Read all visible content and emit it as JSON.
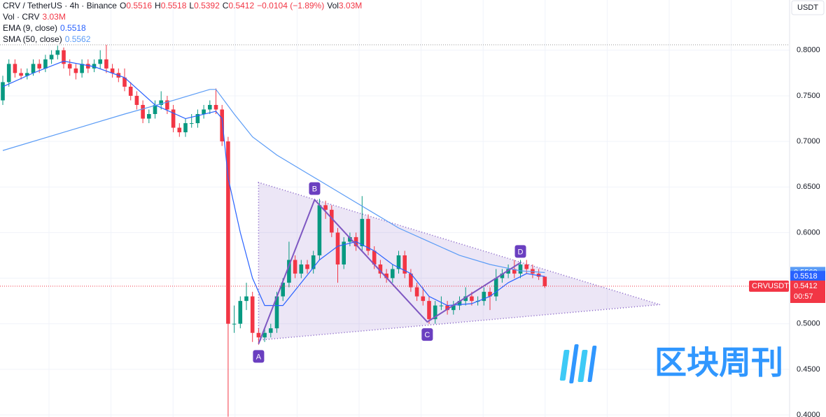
{
  "chart_data": {
    "type": "candlestick",
    "header": {
      "symbol": "CRV / TetherUS · 4h · Binance",
      "ohlc_labels": [
        "O",
        "H",
        "L",
        "C"
      ],
      "open": 0.5516,
      "high": 0.5518,
      "low": 0.5392,
      "close": 0.5412,
      "change": "−0.0104 (−1.89%)",
      "vol_label": "Vol",
      "vol_title": "Vol · CRV",
      "volume": "3.03M"
    },
    "currency": "USDT",
    "ticker": "CRVUSDT",
    "countdown": "00:57",
    "up_color": "#089981",
    "down_color": "#f23645",
    "ylim": [
      0.3977,
      0.8551
    ],
    "yticks": [
      {
        "value": 0.8,
        "label": "0.8000"
      },
      {
        "value": 0.75,
        "label": "0.7500"
      },
      {
        "value": 0.7,
        "label": "0.7000"
      },
      {
        "value": 0.65,
        "label": "0.6500"
      },
      {
        "value": 0.6,
        "label": "0.6000"
      },
      {
        "value": 0.55,
        "label": "0.5500"
      },
      {
        "value": 0.5,
        "label": "0.5000"
      },
      {
        "value": 0.45,
        "label": "0.4500"
      },
      {
        "value": 0.4,
        "label": "0.4000"
      }
    ],
    "high_line": 0.806,
    "candles": [
      [
        0.745,
        0.772,
        0.74,
        0.765
      ],
      [
        0.765,
        0.79,
        0.76,
        0.785
      ],
      [
        0.785,
        0.79,
        0.77,
        0.775
      ],
      [
        0.775,
        0.78,
        0.768,
        0.772
      ],
      [
        0.772,
        0.78,
        0.768,
        0.775
      ],
      [
        0.775,
        0.79,
        0.772,
        0.785
      ],
      [
        0.785,
        0.79,
        0.775,
        0.78
      ],
      [
        0.78,
        0.795,
        0.776,
        0.79
      ],
      [
        0.79,
        0.8,
        0.785,
        0.795
      ],
      [
        0.795,
        0.805,
        0.79,
        0.8
      ],
      [
        0.8,
        0.803,
        0.78,
        0.785
      ],
      [
        0.785,
        0.79,
        0.772,
        0.78
      ],
      [
        0.78,
        0.785,
        0.768,
        0.775
      ],
      [
        0.775,
        0.79,
        0.77,
        0.785
      ],
      [
        0.785,
        0.79,
        0.775,
        0.78
      ],
      [
        0.78,
        0.79,
        0.776,
        0.785
      ],
      [
        0.785,
        0.8,
        0.78,
        0.79
      ],
      [
        0.79,
        0.806,
        0.775,
        0.78
      ],
      [
        0.78,
        0.785,
        0.77,
        0.775
      ],
      [
        0.775,
        0.78,
        0.765,
        0.77
      ],
      [
        0.77,
        0.78,
        0.755,
        0.76
      ],
      [
        0.76,
        0.765,
        0.745,
        0.75
      ],
      [
        0.75,
        0.755,
        0.735,
        0.74
      ],
      [
        0.74,
        0.745,
        0.72,
        0.725
      ],
      [
        0.725,
        0.735,
        0.72,
        0.73
      ],
      [
        0.73,
        0.745,
        0.725,
        0.74
      ],
      [
        0.74,
        0.755,
        0.735,
        0.745
      ],
      [
        0.745,
        0.75,
        0.73,
        0.735
      ],
      [
        0.735,
        0.74,
        0.71,
        0.715
      ],
      [
        0.715,
        0.72,
        0.705,
        0.71
      ],
      [
        0.71,
        0.725,
        0.705,
        0.72
      ],
      [
        0.72,
        0.73,
        0.715,
        0.72
      ],
      [
        0.72,
        0.735,
        0.715,
        0.73
      ],
      [
        0.73,
        0.74,
        0.725,
        0.735
      ],
      [
        0.735,
        0.745,
        0.73,
        0.74
      ],
      [
        0.74,
        0.758,
        0.73,
        0.735
      ],
      [
        0.735,
        0.74,
        0.695,
        0.7
      ],
      [
        0.7,
        0.705,
        0.398,
        0.5
      ],
      [
        0.5,
        0.52,
        0.49,
        0.5
      ],
      [
        0.5,
        0.53,
        0.495,
        0.525
      ],
      [
        0.525,
        0.545,
        0.515,
        0.53
      ],
      [
        0.53,
        0.535,
        0.48,
        0.49
      ],
      [
        0.49,
        0.495,
        0.477,
        0.485
      ],
      [
        0.485,
        0.495,
        0.48,
        0.49
      ],
      [
        0.49,
        0.5,
        0.485,
        0.495
      ],
      [
        0.495,
        0.535,
        0.49,
        0.53
      ],
      [
        0.53,
        0.55,
        0.525,
        0.545
      ],
      [
        0.545,
        0.59,
        0.54,
        0.57
      ],
      [
        0.57,
        0.575,
        0.55,
        0.555
      ],
      [
        0.555,
        0.57,
        0.55,
        0.565
      ],
      [
        0.565,
        0.57,
        0.555,
        0.56
      ],
      [
        0.56,
        0.58,
        0.555,
        0.575
      ],
      [
        0.575,
        0.637,
        0.57,
        0.63
      ],
      [
        0.63,
        0.635,
        0.615,
        0.625
      ],
      [
        0.625,
        0.63,
        0.595,
        0.6
      ],
      [
        0.6,
        0.605,
        0.545,
        0.565
      ],
      [
        0.565,
        0.595,
        0.56,
        0.59
      ],
      [
        0.59,
        0.6,
        0.585,
        0.595
      ],
      [
        0.595,
        0.6,
        0.58,
        0.585
      ],
      [
        0.585,
        0.64,
        0.58,
        0.615
      ],
      [
        0.615,
        0.62,
        0.575,
        0.58
      ],
      [
        0.58,
        0.585,
        0.56,
        0.565
      ],
      [
        0.565,
        0.57,
        0.55,
        0.555
      ],
      [
        0.555,
        0.56,
        0.545,
        0.55
      ],
      [
        0.55,
        0.565,
        0.545,
        0.56
      ],
      [
        0.56,
        0.58,
        0.555,
        0.575
      ],
      [
        0.575,
        0.58,
        0.55,
        0.555
      ],
      [
        0.555,
        0.56,
        0.535,
        0.54
      ],
      [
        0.54,
        0.545,
        0.525,
        0.53
      ],
      [
        0.53,
        0.54,
        0.52,
        0.525
      ],
      [
        0.525,
        0.53,
        0.5,
        0.505
      ],
      [
        0.505,
        0.525,
        0.5,
        0.52
      ],
      [
        0.52,
        0.53,
        0.515,
        0.52
      ],
      [
        0.52,
        0.525,
        0.51,
        0.515
      ],
      [
        0.515,
        0.525,
        0.51,
        0.52
      ],
      [
        0.52,
        0.53,
        0.515,
        0.525
      ],
      [
        0.525,
        0.54,
        0.52,
        0.53
      ],
      [
        0.53,
        0.535,
        0.52,
        0.525
      ],
      [
        0.525,
        0.53,
        0.52,
        0.525
      ],
      [
        0.525,
        0.54,
        0.52,
        0.535
      ],
      [
        0.535,
        0.54,
        0.515,
        0.53
      ],
      [
        0.53,
        0.56,
        0.525,
        0.55
      ],
      [
        0.55,
        0.56,
        0.545,
        0.555
      ],
      [
        0.555,
        0.565,
        0.55,
        0.56
      ],
      [
        0.56,
        0.57,
        0.55,
        0.555
      ],
      [
        0.555,
        0.57,
        0.55,
        0.565
      ],
      [
        0.565,
        0.57,
        0.555,
        0.56
      ],
      [
        0.56,
        0.565,
        0.55,
        0.555
      ],
      [
        0.555,
        0.56,
        0.548,
        0.5516
      ],
      [
        0.5516,
        0.5518,
        0.5392,
        0.5412
      ]
    ],
    "indicators": [
      {
        "name": "EMA (9, close)",
        "color": "#2962ff",
        "last": 0.5518,
        "index": [
          0,
          5,
          10,
          15,
          20,
          25,
          30,
          35,
          36,
          37,
          39,
          41,
          43,
          46,
          49,
          52,
          55,
          58,
          61,
          64,
          67,
          70,
          73,
          77,
          80,
          83,
          86,
          89
        ],
        "values": [
          0.76,
          0.775,
          0.788,
          0.782,
          0.77,
          0.74,
          0.725,
          0.733,
          0.725,
          0.66,
          0.6,
          0.55,
          0.52,
          0.52,
          0.545,
          0.57,
          0.585,
          0.59,
          0.58,
          0.565,
          0.555,
          0.53,
          0.52,
          0.522,
          0.53,
          0.545,
          0.555,
          0.5518
        ]
      },
      {
        "name": "SMA (50, close)",
        "color": "#5b9cf6",
        "last": 0.5562,
        "index": [
          0,
          10,
          20,
          28,
          34,
          35,
          38,
          41,
          45,
          50,
          55,
          60,
          65,
          70,
          75,
          80,
          85,
          89
        ],
        "values": [
          0.69,
          0.71,
          0.73,
          0.745,
          0.757,
          0.757,
          0.73,
          0.705,
          0.685,
          0.665,
          0.645,
          0.625,
          0.605,
          0.59,
          0.575,
          0.565,
          0.558,
          0.5562
        ]
      }
    ],
    "triangle": {
      "index": [
        42,
        42,
        107.9
      ],
      "values": [
        0.655,
        0.482,
        0.521
      ]
    },
    "pattern": {
      "labels": [
        "A",
        "B",
        "C",
        "D"
      ],
      "index": [
        42,
        51.2,
        69.7,
        85
      ],
      "values": [
        0.478,
        0.636,
        0.502,
        0.567
      ]
    },
    "watermark": "区块周刊"
  }
}
